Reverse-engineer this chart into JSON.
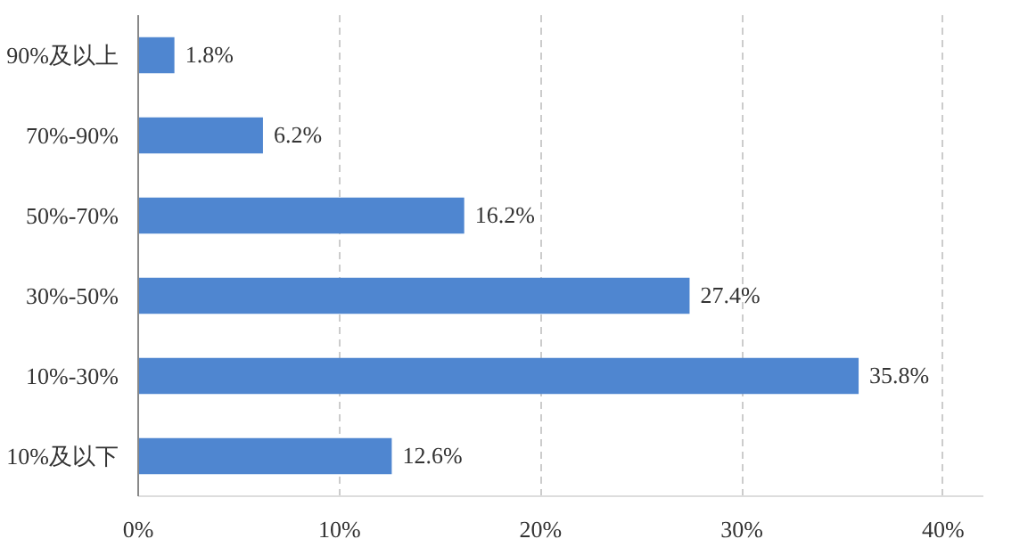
{
  "chart_data": {
    "type": "bar",
    "orientation": "horizontal",
    "categories": [
      "90%及以上",
      "70%-90%",
      "50%-70%",
      "30%-50%",
      "10%-30%",
      "10%及以下"
    ],
    "values": [
      1.8,
      6.2,
      16.2,
      27.4,
      35.8,
      12.6
    ],
    "value_labels": [
      "1.8%",
      "6.2%",
      "16.2%",
      "27.4%",
      "35.8%",
      "12.6%"
    ],
    "color": "#4f86d0",
    "xlim": [
      0,
      42
    ],
    "xticks": [
      {
        "value": 0,
        "label": "0%"
      },
      {
        "value": 10,
        "label": "10%"
      },
      {
        "value": 20,
        "label": "20%"
      },
      {
        "value": 30,
        "label": "30%"
      },
      {
        "value": 40,
        "label": "40%"
      }
    ],
    "grid": "x"
  }
}
